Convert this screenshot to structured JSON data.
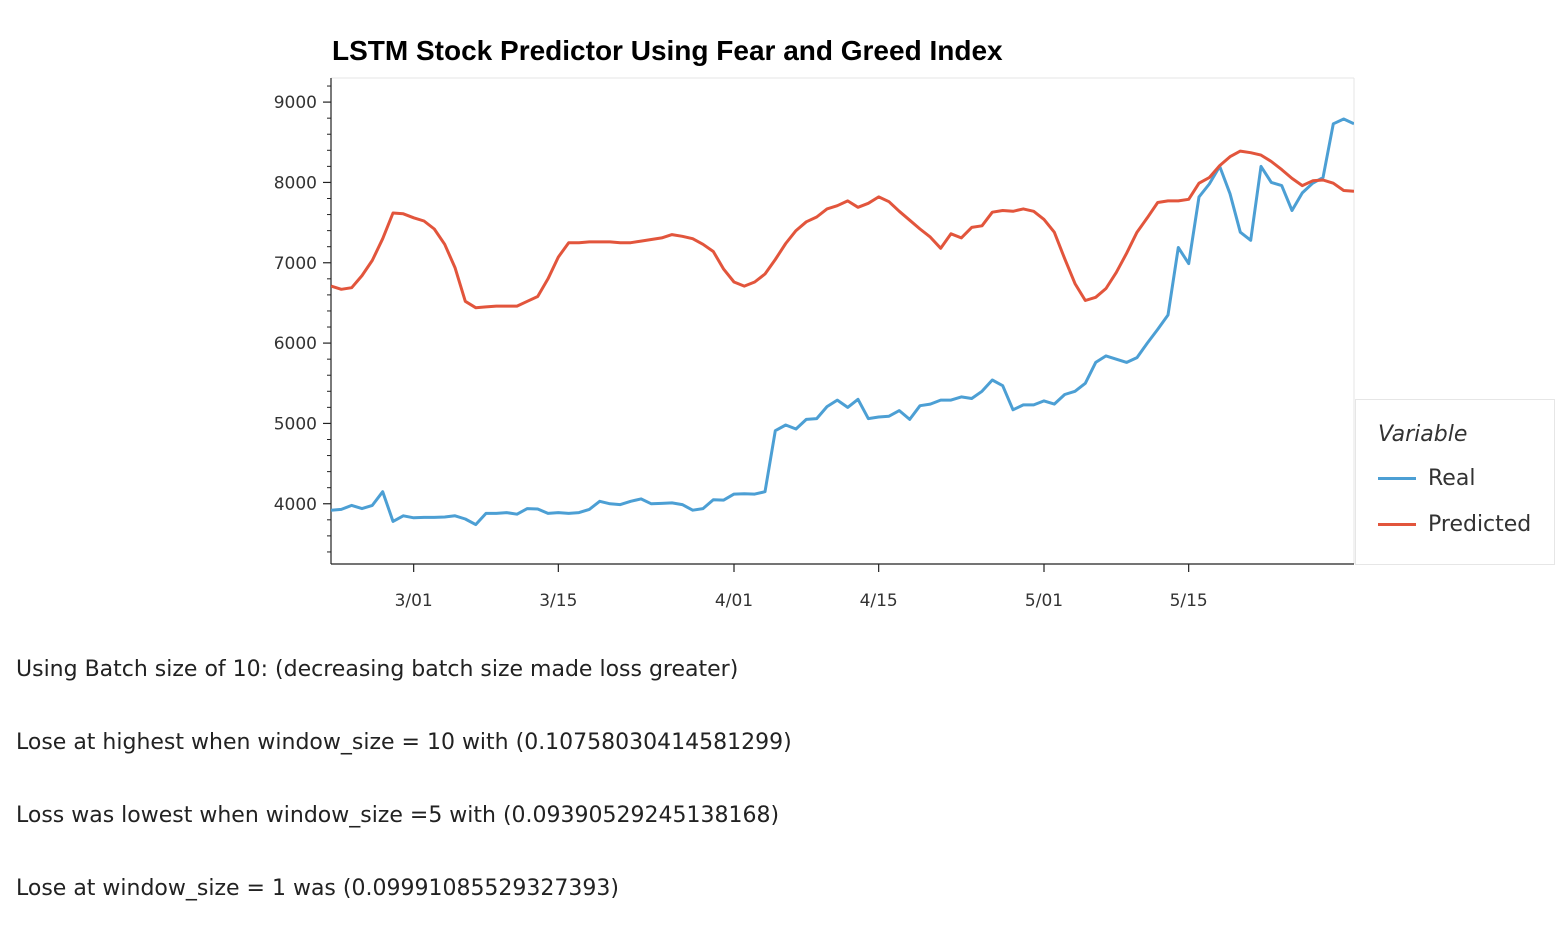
{
  "chart_data": {
    "type": "line",
    "title": "LSTM Stock Predictor Using Fear and Greed Index",
    "xlabel": "",
    "ylabel": "",
    "x_start": "2021-02-21",
    "x_end": "2021-05-29",
    "x_ticks": [
      {
        "date": "2021-03-01",
        "label": "3/01"
      },
      {
        "date": "2021-03-15",
        "label": "3/15"
      },
      {
        "date": "2021-04-01",
        "label": "4/01"
      },
      {
        "date": "2021-04-15",
        "label": "4/15"
      },
      {
        "date": "2021-05-01",
        "label": "5/01"
      },
      {
        "date": "2021-05-15",
        "label": "5/15"
      }
    ],
    "y_ticks": [
      4000,
      5000,
      6000,
      7000,
      8000,
      9000
    ],
    "ylim": [
      3250,
      9300
    ],
    "grid": false,
    "legend_position": "right",
    "legend_title": "Variable",
    "series": [
      {
        "name": "Real",
        "color": "#4c9fd4",
        "points": [
          [
            "2021-02-21",
            3920
          ],
          [
            "2021-02-22",
            3930
          ],
          [
            "2021-02-23",
            3980
          ],
          [
            "2021-02-24",
            3940
          ],
          [
            "2021-02-25",
            3980
          ],
          [
            "2021-02-26",
            4150
          ],
          [
            "2021-02-27",
            3780
          ],
          [
            "2021-02-28",
            3850
          ],
          [
            "2021-03-01",
            3825
          ],
          [
            "2021-03-02",
            3830
          ],
          [
            "2021-03-03",
            3830
          ],
          [
            "2021-03-04",
            3835
          ],
          [
            "2021-03-05",
            3850
          ],
          [
            "2021-03-06",
            3810
          ],
          [
            "2021-03-07",
            3740
          ],
          [
            "2021-03-08",
            3880
          ],
          [
            "2021-03-09",
            3880
          ],
          [
            "2021-03-10",
            3890
          ],
          [
            "2021-03-11",
            3870
          ],
          [
            "2021-03-12",
            3940
          ],
          [
            "2021-03-13",
            3935
          ],
          [
            "2021-03-14",
            3880
          ],
          [
            "2021-03-15",
            3890
          ],
          [
            "2021-03-16",
            3880
          ],
          [
            "2021-03-17",
            3890
          ],
          [
            "2021-03-18",
            3930
          ],
          [
            "2021-03-19",
            4030
          ],
          [
            "2021-03-20",
            4000
          ],
          [
            "2021-03-21",
            3990
          ],
          [
            "2021-03-22",
            4030
          ],
          [
            "2021-03-23",
            4060
          ],
          [
            "2021-03-24",
            4000
          ],
          [
            "2021-03-25",
            4005
          ],
          [
            "2021-03-26",
            4010
          ],
          [
            "2021-03-27",
            3990
          ],
          [
            "2021-03-28",
            3920
          ],
          [
            "2021-03-29",
            3940
          ],
          [
            "2021-03-30",
            4050
          ],
          [
            "2021-03-31",
            4045
          ],
          [
            "2021-04-01",
            4120
          ],
          [
            "2021-04-02",
            4125
          ],
          [
            "2021-04-03",
            4120
          ],
          [
            "2021-04-04",
            4150
          ],
          [
            "2021-04-05",
            4910
          ],
          [
            "2021-04-06",
            4980
          ],
          [
            "2021-04-07",
            4930
          ],
          [
            "2021-04-08",
            5050
          ],
          [
            "2021-04-09",
            5060
          ],
          [
            "2021-04-10",
            5210
          ],
          [
            "2021-04-11",
            5290
          ],
          [
            "2021-04-12",
            5200
          ],
          [
            "2021-04-13",
            5300
          ],
          [
            "2021-04-14",
            5060
          ],
          [
            "2021-04-15",
            5080
          ],
          [
            "2021-04-16",
            5090
          ],
          [
            "2021-04-17",
            5160
          ],
          [
            "2021-04-18",
            5050
          ],
          [
            "2021-04-19",
            5220
          ],
          [
            "2021-04-20",
            5240
          ],
          [
            "2021-04-21",
            5290
          ],
          [
            "2021-04-22",
            5290
          ],
          [
            "2021-04-23",
            5330
          ],
          [
            "2021-04-24",
            5310
          ],
          [
            "2021-04-25",
            5400
          ],
          [
            "2021-04-26",
            5540
          ],
          [
            "2021-04-27",
            5470
          ],
          [
            "2021-04-28",
            5170
          ],
          [
            "2021-04-29",
            5230
          ],
          [
            "2021-04-30",
            5230
          ],
          [
            "2021-05-01",
            5280
          ],
          [
            "2021-05-02",
            5240
          ],
          [
            "2021-05-03",
            5360
          ],
          [
            "2021-05-04",
            5400
          ],
          [
            "2021-05-05",
            5500
          ],
          [
            "2021-05-06",
            5760
          ],
          [
            "2021-05-07",
            5840
          ],
          [
            "2021-05-08",
            5800
          ],
          [
            "2021-05-09",
            5760
          ],
          [
            "2021-05-10",
            5820
          ],
          [
            "2021-05-11",
            6000
          ],
          [
            "2021-05-12",
            6170
          ],
          [
            "2021-05-13",
            6350
          ],
          [
            "2021-05-14",
            7190
          ],
          [
            "2021-05-15",
            6990
          ],
          [
            "2021-05-16",
            7820
          ],
          [
            "2021-05-17",
            7980
          ],
          [
            "2021-05-18",
            8200
          ],
          [
            "2021-05-19",
            7860
          ],
          [
            "2021-05-20",
            7380
          ],
          [
            "2021-05-21",
            7280
          ],
          [
            "2021-05-22",
            8200
          ],
          [
            "2021-05-23",
            8000
          ],
          [
            "2021-05-24",
            7960
          ],
          [
            "2021-05-25",
            7650
          ],
          [
            "2021-05-26",
            7870
          ],
          [
            "2021-05-27",
            7990
          ],
          [
            "2021-05-28",
            8060
          ],
          [
            "2021-05-29",
            8730
          ],
          [
            "2021-05-30",
            8790
          ],
          [
            "2021-05-31",
            8730
          ]
        ]
      },
      {
        "name": "Predicted",
        "color": "#e2553c",
        "points": [
          [
            "2021-02-21",
            6710
          ],
          [
            "2021-02-22",
            6670
          ],
          [
            "2021-02-23",
            6690
          ],
          [
            "2021-02-24",
            6840
          ],
          [
            "2021-02-25",
            7030
          ],
          [
            "2021-02-26",
            7300
          ],
          [
            "2021-02-27",
            7620
          ],
          [
            "2021-02-28",
            7610
          ],
          [
            "2021-03-01",
            7560
          ],
          [
            "2021-03-02",
            7520
          ],
          [
            "2021-03-03",
            7420
          ],
          [
            "2021-03-04",
            7230
          ],
          [
            "2021-03-05",
            6940
          ],
          [
            "2021-03-06",
            6520
          ],
          [
            "2021-03-07",
            6440
          ],
          [
            "2021-03-08",
            6450
          ],
          [
            "2021-03-09",
            6460
          ],
          [
            "2021-03-10",
            6460
          ],
          [
            "2021-03-11",
            6460
          ],
          [
            "2021-03-12",
            6520
          ],
          [
            "2021-03-13",
            6580
          ],
          [
            "2021-03-14",
            6800
          ],
          [
            "2021-03-15",
            7070
          ],
          [
            "2021-03-16",
            7250
          ],
          [
            "2021-03-17",
            7250
          ],
          [
            "2021-03-18",
            7260
          ],
          [
            "2021-03-19",
            7260
          ],
          [
            "2021-03-20",
            7260
          ],
          [
            "2021-03-21",
            7250
          ],
          [
            "2021-03-22",
            7250
          ],
          [
            "2021-03-23",
            7270
          ],
          [
            "2021-03-24",
            7290
          ],
          [
            "2021-03-25",
            7310
          ],
          [
            "2021-03-26",
            7350
          ],
          [
            "2021-03-27",
            7330
          ],
          [
            "2021-03-28",
            7300
          ],
          [
            "2021-03-29",
            7230
          ],
          [
            "2021-03-30",
            7140
          ],
          [
            "2021-03-31",
            6920
          ],
          [
            "2021-04-01",
            6760
          ],
          [
            "2021-04-02",
            6710
          ],
          [
            "2021-04-03",
            6760
          ],
          [
            "2021-04-04",
            6860
          ],
          [
            "2021-04-05",
            7040
          ],
          [
            "2021-04-06",
            7240
          ],
          [
            "2021-04-07",
            7400
          ],
          [
            "2021-04-08",
            7510
          ],
          [
            "2021-04-09",
            7570
          ],
          [
            "2021-04-10",
            7670
          ],
          [
            "2021-04-11",
            7710
          ],
          [
            "2021-04-12",
            7770
          ],
          [
            "2021-04-13",
            7690
          ],
          [
            "2021-04-14",
            7740
          ],
          [
            "2021-04-15",
            7820
          ],
          [
            "2021-04-16",
            7760
          ],
          [
            "2021-04-17",
            7640
          ],
          [
            "2021-04-18",
            7530
          ],
          [
            "2021-04-19",
            7420
          ],
          [
            "2021-04-20",
            7320
          ],
          [
            "2021-04-21",
            7180
          ],
          [
            "2021-04-22",
            7360
          ],
          [
            "2021-04-23",
            7310
          ],
          [
            "2021-04-24",
            7440
          ],
          [
            "2021-04-25",
            7460
          ],
          [
            "2021-04-26",
            7630
          ],
          [
            "2021-04-27",
            7650
          ],
          [
            "2021-04-28",
            7640
          ],
          [
            "2021-04-29",
            7670
          ],
          [
            "2021-04-30",
            7640
          ],
          [
            "2021-05-01",
            7540
          ],
          [
            "2021-05-02",
            7380
          ],
          [
            "2021-05-03",
            7050
          ],
          [
            "2021-05-04",
            6740
          ],
          [
            "2021-05-05",
            6530
          ],
          [
            "2021-05-06",
            6570
          ],
          [
            "2021-05-07",
            6680
          ],
          [
            "2021-05-08",
            6880
          ],
          [
            "2021-05-09",
            7120
          ],
          [
            "2021-05-10",
            7380
          ],
          [
            "2021-05-11",
            7560
          ],
          [
            "2021-05-12",
            7750
          ],
          [
            "2021-05-13",
            7770
          ],
          [
            "2021-05-14",
            7770
          ],
          [
            "2021-05-15",
            7790
          ],
          [
            "2021-05-16",
            7990
          ],
          [
            "2021-05-17",
            8060
          ],
          [
            "2021-05-18",
            8210
          ],
          [
            "2021-05-19",
            8320
          ],
          [
            "2021-05-20",
            8390
          ],
          [
            "2021-05-21",
            8370
          ],
          [
            "2021-05-22",
            8340
          ],
          [
            "2021-05-23",
            8260
          ],
          [
            "2021-05-24",
            8160
          ],
          [
            "2021-05-25",
            8050
          ],
          [
            "2021-05-26",
            7960
          ],
          [
            "2021-05-27",
            8020
          ],
          [
            "2021-05-28",
            8030
          ],
          [
            "2021-05-29",
            7990
          ],
          [
            "2021-05-30",
            7900
          ],
          [
            "2021-05-31",
            7890
          ]
        ]
      }
    ]
  },
  "notes": [
    "Using Batch size of 10: (decreasing batch size made loss greater)",
    "Lose at highest when window_size = 10 with (0.10758030414581299)",
    "Loss was lowest when window_size =5 with (0.09390529245138168)",
    "Lose at window_size = 1 was (0.09991085529327393)"
  ]
}
